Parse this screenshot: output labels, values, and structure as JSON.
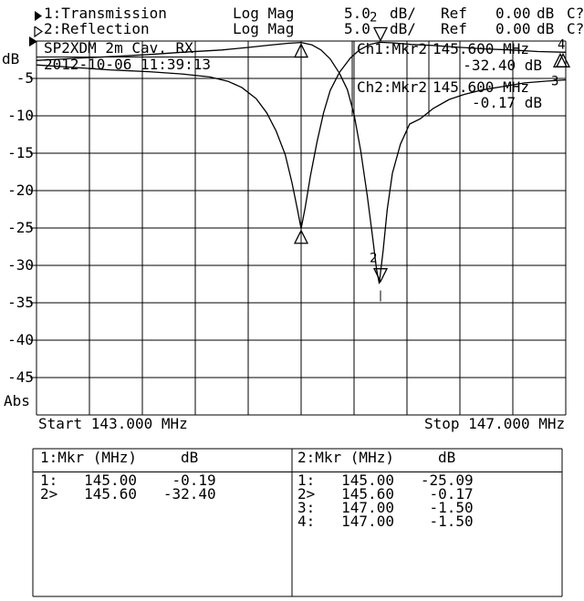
{
  "header": {
    "rows": [
      {
        "trace_icon": "filled-right-triangle-icon",
        "trace": "1:Transmission",
        "format": "Log Mag",
        "scale": "5.0",
        "scale_unit": "dB/",
        "ref_label": "Ref",
        "ref_value": "0.00",
        "ref_unit": "dB",
        "status": "C?"
      },
      {
        "trace_icon": "open-right-triangle-icon",
        "trace": "2:Reflection",
        "format": "Log Mag",
        "scale": "5.0",
        "scale_unit": "dB/",
        "ref_label": "Ref",
        "ref_value": "0.00",
        "ref_unit": "dB",
        "status": "C?"
      }
    ]
  },
  "plot": {
    "ylabel": "dB",
    "abs_label": "Abs",
    "start_label": "Start 143.000 MHz",
    "stop_label": "Stop 147.000 MHz",
    "readouts": [
      {
        "label": "Ch1:Mkr2",
        "freq": "145.600 MHz",
        "level": "-32.40 dB"
      },
      {
        "label": "Ch2:Mkr2",
        "freq": "145.600 MHz",
        "level": "-0.17 dB"
      }
    ]
  },
  "chart_data": {
    "type": "line",
    "title": "SP2XDM 2m Cav. RX",
    "datetime": "2012-10-06 11:39:13",
    "xlabel_start": "Start 143.000 MHz",
    "xlabel_stop": "Stop 147.000 MHz",
    "ylabel": "dB",
    "x_range_mhz": [
      143.0,
      147.0
    ],
    "y_range_db": [
      0,
      -50
    ],
    "y_ticks_db": [
      -5,
      -10,
      -15,
      -20,
      -25,
      -30,
      -35,
      -40,
      -45
    ],
    "grid_divisions": [
      10,
      10
    ],
    "scale_db_per_div": 5.0,
    "ref_db": 0.0,
    "legend_position": "top-left",
    "series": [
      {
        "name": "Transmission",
        "channel": 1,
        "points": [
          [
            143.0,
            -2.6
          ],
          [
            143.3,
            -2.3
          ],
          [
            143.6,
            -2.05
          ],
          [
            143.85,
            -1.8
          ],
          [
            144.1,
            -1.5
          ],
          [
            144.4,
            -1.2
          ],
          [
            144.6,
            -0.85
          ],
          [
            144.76,
            -0.55
          ],
          [
            144.9,
            -0.3
          ],
          [
            145.0,
            -0.19
          ],
          [
            145.08,
            -0.5
          ],
          [
            145.15,
            -1.2
          ],
          [
            145.22,
            -2.4
          ],
          [
            145.29,
            -4.3
          ],
          [
            145.35,
            -6.5
          ],
          [
            145.4,
            -9.8
          ],
          [
            145.45,
            -14.6
          ],
          [
            145.5,
            -20.7
          ],
          [
            145.54,
            -26.2
          ],
          [
            145.57,
            -30.5
          ],
          [
            145.59,
            -32.4
          ],
          [
            145.62,
            -28.0
          ],
          [
            145.65,
            -22.6
          ],
          [
            145.69,
            -17.7
          ],
          [
            145.75,
            -13.8
          ],
          [
            145.82,
            -11.1
          ],
          [
            145.9,
            -10.4
          ],
          [
            146.0,
            -9.0
          ],
          [
            146.12,
            -7.8
          ],
          [
            146.24,
            -7.1
          ],
          [
            146.38,
            -6.5
          ],
          [
            146.52,
            -6.1
          ],
          [
            146.69,
            -5.6
          ],
          [
            146.86,
            -5.35
          ],
          [
            147.0,
            -5.2
          ]
        ]
      },
      {
        "name": "Reflection",
        "channel": 2,
        "points": [
          [
            143.0,
            -3.2
          ],
          [
            143.3,
            -3.55
          ],
          [
            143.55,
            -3.85
          ],
          [
            143.85,
            -4.1
          ],
          [
            144.1,
            -4.4
          ],
          [
            144.31,
            -4.8
          ],
          [
            144.45,
            -5.4
          ],
          [
            144.55,
            -6.2
          ],
          [
            144.66,
            -7.7
          ],
          [
            144.74,
            -9.6
          ],
          [
            144.81,
            -12.0
          ],
          [
            144.88,
            -15.2
          ],
          [
            144.93,
            -18.9
          ],
          [
            144.97,
            -22.3
          ],
          [
            145.0,
            -25.09
          ],
          [
            145.03,
            -22.3
          ],
          [
            145.07,
            -18.1
          ],
          [
            145.12,
            -13.5
          ],
          [
            145.17,
            -9.6
          ],
          [
            145.22,
            -6.6
          ],
          [
            145.29,
            -4.2
          ],
          [
            145.37,
            -2.3
          ],
          [
            145.44,
            -1.2
          ],
          [
            145.52,
            -0.45
          ],
          [
            145.59,
            -0.17
          ],
          [
            145.69,
            -0.25
          ],
          [
            145.83,
            -0.45
          ],
          [
            146.0,
            -0.6
          ],
          [
            146.17,
            -0.8
          ],
          [
            146.38,
            -1.05
          ],
          [
            146.59,
            -1.2
          ],
          [
            146.79,
            -1.4
          ],
          [
            147.0,
            -1.5
          ]
        ]
      }
    ],
    "markers": [
      {
        "channel": 1,
        "marker": "1",
        "freq_mhz": 145.0,
        "db": -0.19
      },
      {
        "channel": 1,
        "marker": "2",
        "freq_mhz": 145.6,
        "db": -32.4
      },
      {
        "channel": 2,
        "marker": "1",
        "freq_mhz": 145.0,
        "db": -25.09
      },
      {
        "channel": 2,
        "marker": "2",
        "freq_mhz": 145.6,
        "db": -0.17
      },
      {
        "channel": 2,
        "marker": "3",
        "freq_mhz": 147.0,
        "db": -1.5
      },
      {
        "channel": 2,
        "marker": "4",
        "freq_mhz": 147.0,
        "db": -1.5
      }
    ]
  },
  "marker_tables": [
    {
      "header_title": "1:Mkr (MHz)",
      "header_unit": "dB",
      "rows": [
        {
          "id": "1:",
          "freq": "145.00",
          "db": "-0.19"
        },
        {
          "id": "2>",
          "freq": "145.60",
          "db": "-32.40"
        }
      ]
    },
    {
      "header_title": "2:Mkr (MHz)",
      "header_unit": "dB",
      "rows": [
        {
          "id": "1:",
          "freq": "145.00",
          "db": "-25.09"
        },
        {
          "id": "2>",
          "freq": "145.60",
          "db": "-0.17"
        },
        {
          "id": "3:",
          "freq": "147.00",
          "db": "-1.50"
        },
        {
          "id": "4:",
          "freq": "147.00",
          "db": "-1.50"
        }
      ]
    }
  ]
}
